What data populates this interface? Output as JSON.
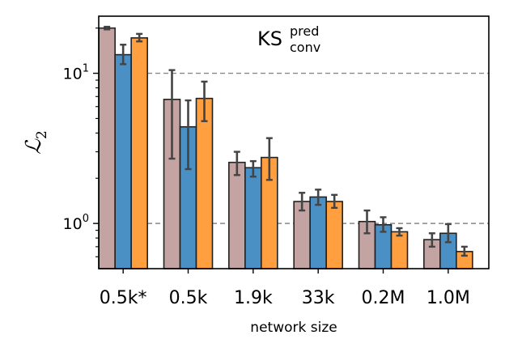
{
  "chart_data": {
    "type": "bar",
    "categories": [
      "0.5k*",
      "0.5k",
      "1.9k",
      "33k",
      "0.2M",
      "1.0M"
    ],
    "xlabel": "network size",
    "ylabel_main": "ℒ",
    "ylabel_sub": "2",
    "annotation": {
      "base": "KS",
      "sup": "pred",
      "sub": "conv"
    },
    "yscale": "log",
    "ylim": [
      0.5,
      24
    ],
    "yticks": [
      {
        "value": 1,
        "base": "10",
        "exp": "0"
      },
      {
        "value": 10,
        "base": "10",
        "exp": "1"
      }
    ],
    "grid": {
      "y_dashed_at": [
        1,
        10
      ]
    },
    "colors": [
      "#c4a3a3",
      "#4a90c4",
      "#ff9f3f"
    ],
    "series": [
      {
        "values": [
          20.0,
          6.7,
          2.55,
          1.4,
          1.03,
          0.78
        ],
        "err_low": [
          19.6,
          2.7,
          2.1,
          1.22,
          0.86,
          0.7
        ],
        "err_high": [
          20.4,
          10.5,
          3.0,
          1.6,
          1.22,
          0.86
        ]
      },
      {
        "values": [
          13.3,
          4.4,
          2.35,
          1.5,
          0.98,
          0.86
        ],
        "err_low": [
          11.5,
          2.3,
          2.05,
          1.33,
          0.88,
          0.75
        ],
        "err_high": [
          15.5,
          6.6,
          2.6,
          1.68,
          1.1,
          0.99
        ]
      },
      {
        "values": [
          17.2,
          6.8,
          2.75,
          1.4,
          0.88,
          0.65
        ],
        "err_low": [
          16.3,
          4.8,
          1.95,
          1.27,
          0.83,
          0.61
        ],
        "err_high": [
          18.3,
          8.8,
          3.7,
          1.55,
          0.93,
          0.7
        ]
      }
    ]
  }
}
